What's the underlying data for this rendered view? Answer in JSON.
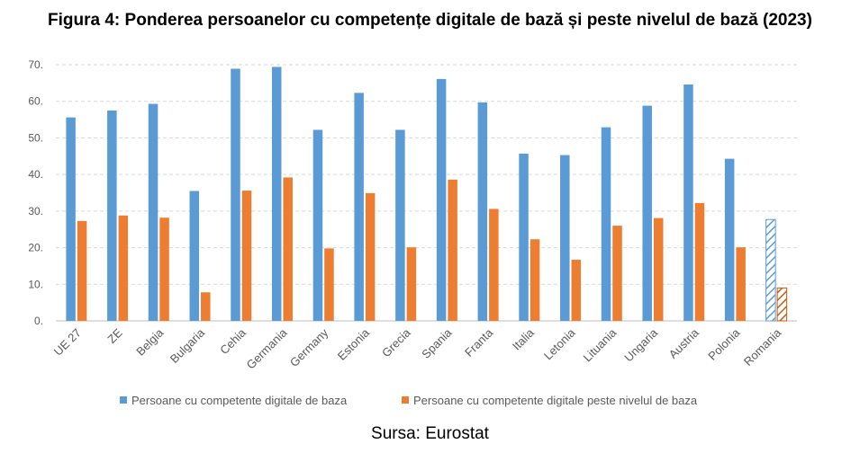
{
  "title": "Figura 4: Ponderea persoanelor cu competențe digitale de bază și peste nivelul de bază (2023)",
  "source": "Sursa: Eurostat",
  "colors": {
    "series1": "#5b9bd5",
    "series2": "#ed7d31",
    "grid": "#d9d9d9",
    "axis_text": "#595959"
  },
  "chart_data": {
    "type": "bar",
    "title": "Figura 4: Ponderea persoanelor cu competențe digitale de bază și peste nivelul de bază (2023)",
    "xlabel": "",
    "ylabel": "",
    "ylim": [
      0,
      70
    ],
    "yticks": [
      0,
      10,
      20,
      30,
      40,
      50,
      60,
      70
    ],
    "ytick_labels": [
      "0.",
      "10.",
      "20.",
      "30.",
      "40.",
      "50.",
      "60.",
      "70."
    ],
    "grid": true,
    "legend_position": "bottom",
    "categories": [
      "UE 27",
      "ZE",
      "Belgia",
      "Bulgaria",
      "Cehia",
      "Germania",
      "Germany",
      "Estonia",
      "Grecia",
      "Spania",
      "Franta",
      "Italia",
      "Letonia",
      "Lituania",
      "Ungaria",
      "Austria",
      "Polonia",
      "Romania"
    ],
    "series": [
      {
        "name": "Persoane cu competente digitale de baza",
        "values": [
          55.6,
          57.5,
          59.3,
          35.5,
          68.9,
          69.4,
          52.2,
          62.3,
          52.2,
          66.1,
          59.7,
          45.7,
          45.3,
          52.9,
          58.8,
          64.6,
          44.3,
          27.7
        ]
      },
      {
        "name": "Persoane cu competente digitale peste nivelul de baza",
        "values": [
          27.3,
          28.8,
          28.2,
          7.8,
          35.6,
          39.2,
          19.8,
          34.9,
          20.1,
          38.6,
          30.6,
          22.3,
          16.7,
          26.0,
          28.1,
          32.2,
          20.1,
          9.0
        ]
      }
    ],
    "hatched_categories": [
      "Romania"
    ]
  }
}
